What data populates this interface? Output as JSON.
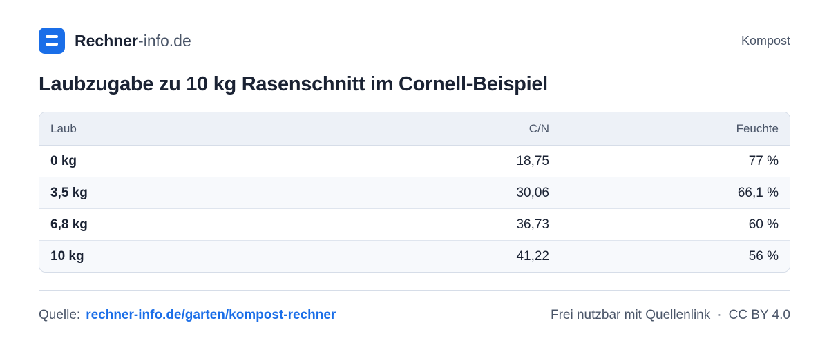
{
  "header": {
    "brand": {
      "bold": "Rechner",
      "light": "-info.de"
    },
    "category": "Kompost"
  },
  "title": "Laubzugabe zu 10 kg Rasenschnitt im Cornell-Beispiel",
  "table": {
    "columns": [
      "Laub",
      "C/N",
      "Feuchte"
    ],
    "rows": [
      [
        "0 kg",
        "18,75",
        "77 %"
      ],
      [
        "3,5 kg",
        "30,06",
        "66,1 %"
      ],
      [
        "6,8 kg",
        "36,73",
        "60 %"
      ],
      [
        "10 kg",
        "41,22",
        "56 %"
      ]
    ]
  },
  "footer": {
    "source_label": "Quelle:",
    "source_link": "rechner-info.de/garten/kompost-rechner",
    "license_note": "Frei nutzbar mit Quellenlink",
    "separator": "·",
    "license": "CC BY 4.0"
  }
}
